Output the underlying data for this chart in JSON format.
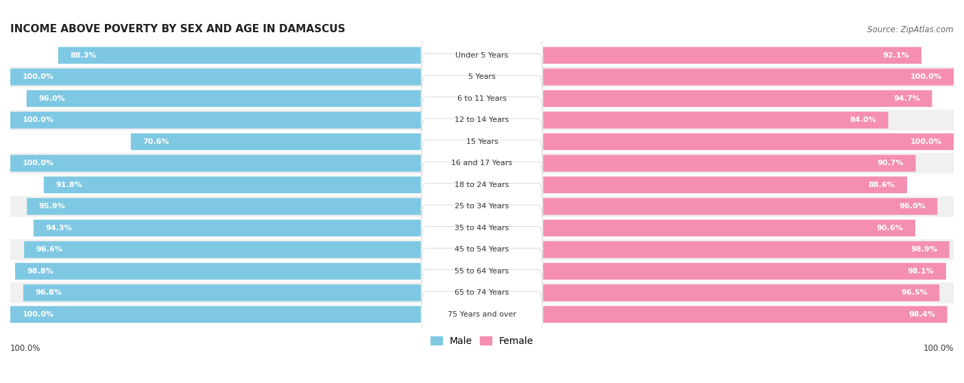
{
  "title": "INCOME ABOVE POVERTY BY SEX AND AGE IN DAMASCUS",
  "source": "Source: ZipAtlas.com",
  "categories": [
    "Under 5 Years",
    "5 Years",
    "6 to 11 Years",
    "12 to 14 Years",
    "15 Years",
    "16 and 17 Years",
    "18 to 24 Years",
    "25 to 34 Years",
    "35 to 44 Years",
    "45 to 54 Years",
    "55 to 64 Years",
    "65 to 74 Years",
    "75 Years and over"
  ],
  "male_values": [
    88.3,
    100.0,
    96.0,
    100.0,
    70.6,
    100.0,
    91.8,
    95.9,
    94.3,
    96.6,
    98.8,
    96.8,
    100.0
  ],
  "female_values": [
    92.1,
    100.0,
    94.7,
    84.0,
    100.0,
    90.7,
    88.6,
    96.0,
    90.6,
    98.9,
    98.1,
    96.5,
    98.4
  ],
  "male_color": "#7ec8e3",
  "female_color": "#f48fb1",
  "male_color_light": "#aed9ee",
  "female_color_light": "#f9b8ce",
  "row_bg_odd": "#f0f0f0",
  "row_bg_even": "#ffffff",
  "title_fontsize": 11,
  "source_fontsize": 8.5,
  "legend_fontsize": 10,
  "label_fontsize": 8,
  "category_fontsize": 8,
  "max_value": 100.0
}
